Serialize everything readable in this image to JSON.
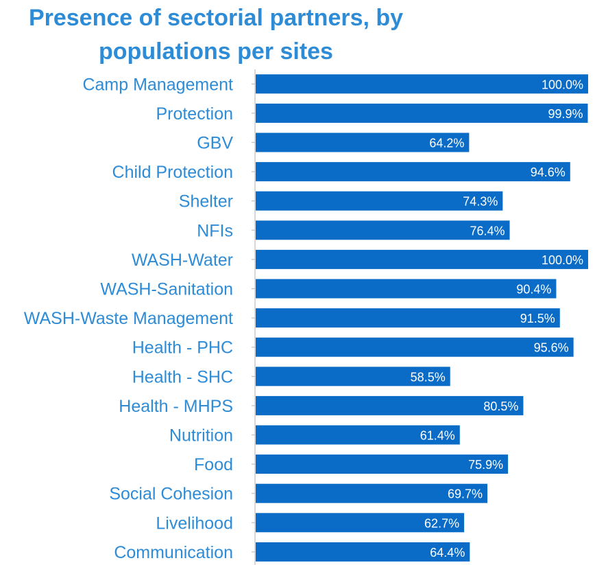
{
  "chart_data": {
    "type": "bar",
    "orientation": "horizontal",
    "title_lines": [
      "Presence of sectorial partners, by",
      "populations per sites"
    ],
    "categories": [
      "Camp Management",
      "Protection",
      "GBV",
      "Child Protection",
      "Shelter",
      "NFIs",
      "WASH-Water",
      "WASH-Sanitation",
      "WASH-Waste Management",
      "Health - PHC",
      "Health - SHC",
      "Health - MHPS",
      "Nutrition",
      "Food",
      "Social Cohesion",
      "Livelihood",
      "Communication"
    ],
    "values": [
      100.0,
      99.9,
      64.2,
      94.6,
      74.3,
      76.4,
      100.0,
      90.4,
      91.5,
      95.6,
      58.5,
      80.5,
      61.4,
      75.9,
      69.7,
      62.7,
      64.4
    ],
    "value_labels": [
      "100.0%",
      "99.9%",
      "64.2%",
      "94.6%",
      "74.3%",
      "76.4%",
      "100.0%",
      "90.4%",
      "91.5%",
      "95.6%",
      "58.5%",
      "80.5%",
      "61.4%",
      "75.9%",
      "69.7%",
      "62.7%",
      "64.4%"
    ],
    "unit": "%",
    "xlim": [
      0,
      100
    ],
    "grid": false,
    "legend": "none",
    "colors": {
      "bar": "#0a6cc7",
      "text": "#2e8bd6",
      "value_text": "#ffffff"
    }
  }
}
